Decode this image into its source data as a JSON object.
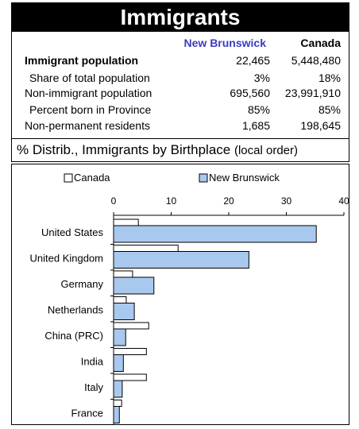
{
  "title": "Immigrants",
  "stats": {
    "col1_header": "New Brunswick",
    "col2_header": "Canada",
    "col1_color": "#3b3bc4",
    "rows": [
      {
        "label": "Immigrant population",
        "v1": "22,465",
        "v2": "5,448,480",
        "bold": true,
        "indent": false
      },
      {
        "label": "Share of total population",
        "v1": "3%",
        "v2": "18%",
        "bold": false,
        "indent": true
      },
      {
        "label": "Non-immigrant population",
        "v1": "695,560",
        "v2": "23,991,910",
        "bold": false,
        "indent": false
      },
      {
        "label": "Percent born in Province",
        "v1": "85%",
        "v2": "85%",
        "bold": false,
        "indent": true
      },
      {
        "label": "Non-permanent residents",
        "v1": "1,685",
        "v2": "198,645",
        "bold": false,
        "indent": false
      }
    ]
  },
  "subtitle": {
    "main": "% Distrib., Immigrants by Birthplace",
    "paren": "(local order)"
  },
  "chart_data": {
    "type": "bar",
    "orientation": "horizontal",
    "categories": [
      "United States",
      "United Kingdom",
      "Germany",
      "Netherlands",
      "China (PRC)",
      "India",
      "Italy",
      "France"
    ],
    "series": [
      {
        "name": "Canada",
        "color": "#ffffff",
        "values": [
          4.3,
          11.2,
          3.3,
          2.2,
          6.1,
          5.7,
          5.7,
          1.4
        ]
      },
      {
        "name": "New Brunswick",
        "color": "#a9c8ee",
        "values": [
          35.2,
          23.5,
          7.0,
          3.6,
          2.1,
          1.7,
          1.5,
          1.0
        ]
      }
    ],
    "xlim": [
      0,
      40
    ],
    "xticks": [
      "0",
      "10",
      "20",
      "30",
      "40"
    ],
    "legend_position": "top",
    "grid": false
  }
}
